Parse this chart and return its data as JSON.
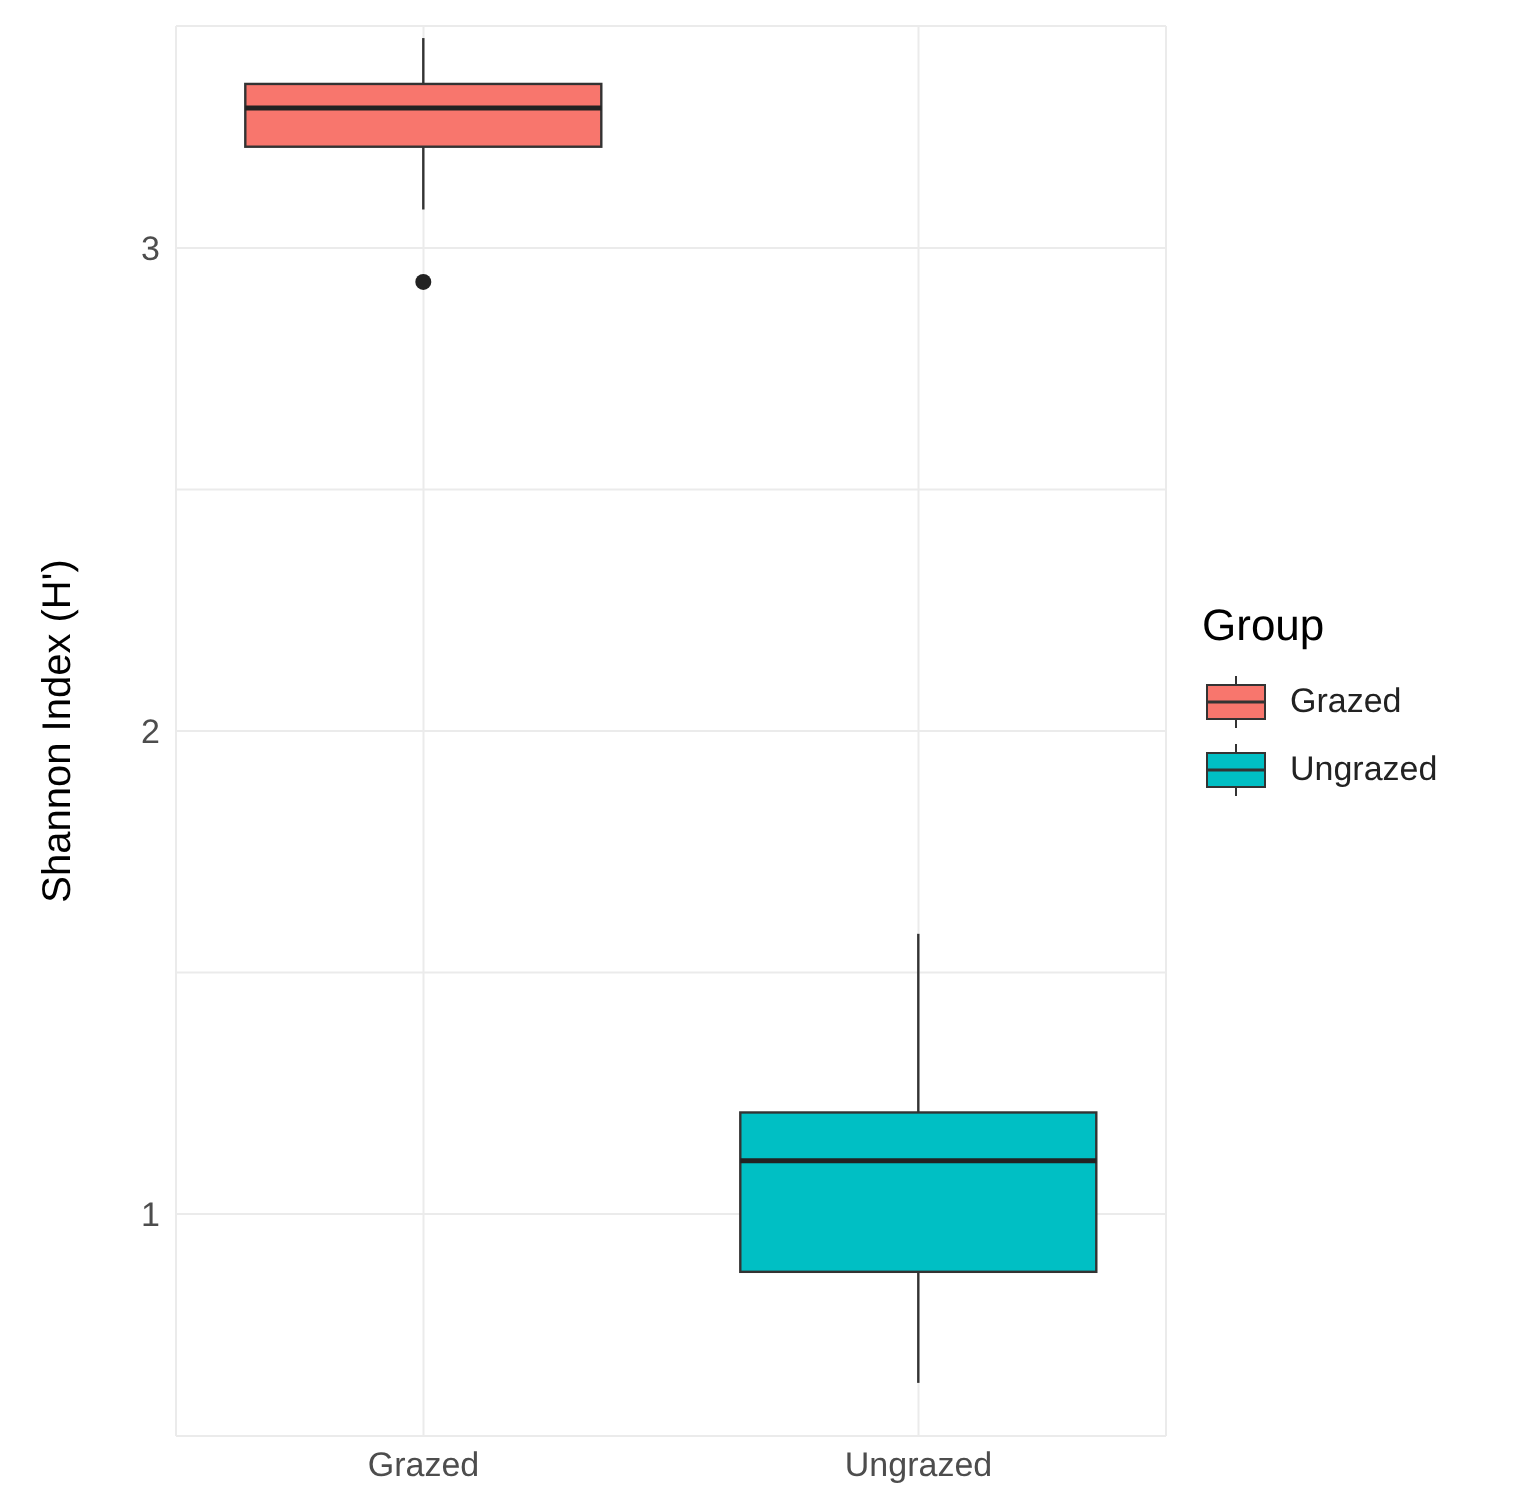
{
  "chart_data": {
    "type": "box",
    "ylabel": "Shannon Index (H')",
    "legend_title": "Group",
    "categories": [
      "Grazed",
      "Ungrazed"
    ],
    "series": [
      {
        "name": "Grazed",
        "color": "#f8766d",
        "boxes": [
          {
            "low": 3.08,
            "q1": 3.21,
            "median": 3.29,
            "q3": 3.34,
            "high": 3.435,
            "outliers": [
              2.93
            ]
          },
          null
        ]
      },
      {
        "name": "Ungrazed",
        "color": "#00bfc4",
        "boxes": [
          null,
          {
            "low": 0.65,
            "q1": 0.88,
            "median": 1.11,
            "q3": 1.21,
            "high": 1.58
          }
        ]
      }
    ],
    "ylim": [
      0.54,
      3.46
    ],
    "yticks": [
      1,
      {
        "value": 1.5,
        "label": null
      },
      2,
      {
        "value": 2.5,
        "label": null
      },
      3
    ],
    "grid": true,
    "legend": "right"
  }
}
